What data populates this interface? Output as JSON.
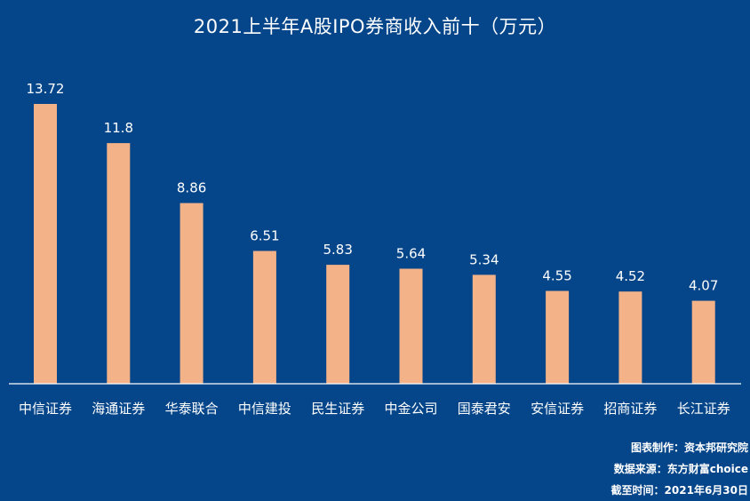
{
  "chart_data": {
    "type": "bar",
    "title": "2021上半年A股IPO券商收入前十（万元）",
    "categories": [
      "中信证券",
      "海通证券",
      "华泰联合",
      "中信建投",
      "民生证券",
      "中金公司",
      "国泰君安",
      "安信证券",
      "招商证券",
      "长江证券"
    ],
    "values": [
      13.72,
      11.8,
      8.86,
      6.51,
      5.83,
      5.64,
      5.34,
      4.55,
      4.52,
      4.07
    ],
    "value_labels": [
      "13.72",
      "11.8",
      "8.86",
      "6.51",
      "5.83",
      "5.64",
      "5.34",
      "4.55",
      "4.52",
      "4.07"
    ],
    "xlabel": "",
    "ylabel": "",
    "ylim": [
      0,
      13.72
    ],
    "grid": false,
    "bar_color": "#f3b287",
    "background_color": "#05468a",
    "axis_color": "#ffffff"
  },
  "footer": {
    "producer": "图表制作：资本邦研究院",
    "source": "数据来源：东方财富choice",
    "cutoff": "截至时间：2021年6月30日"
  }
}
